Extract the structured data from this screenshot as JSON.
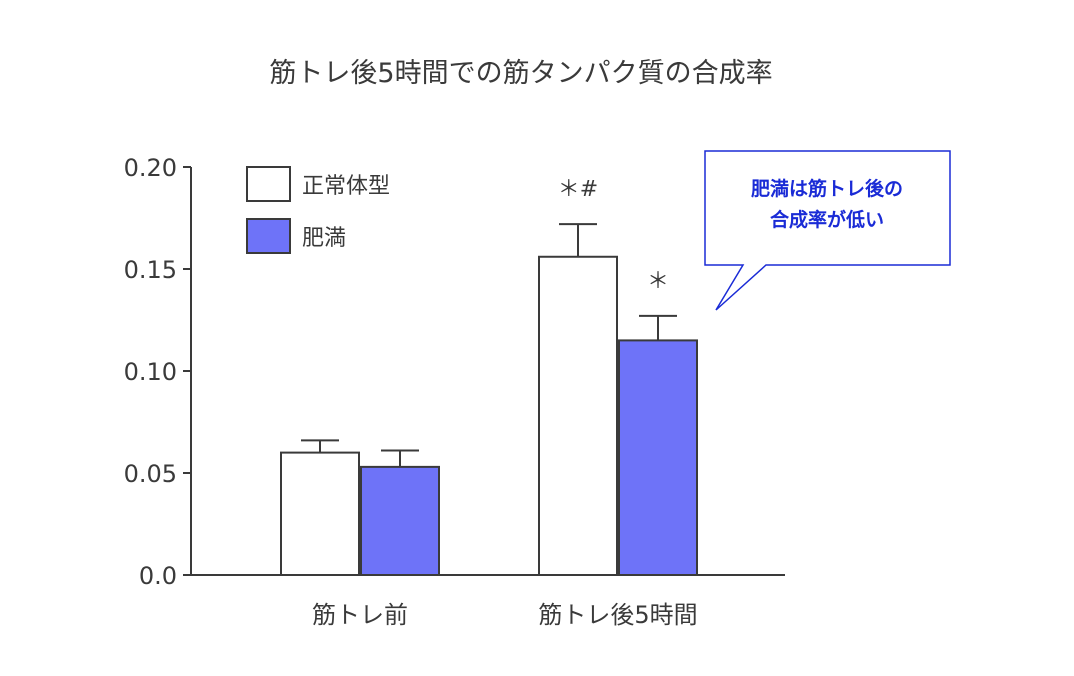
{
  "chart_data": {
    "type": "bar",
    "title": "筋トレ後5時間での筋タンパク質の合成率",
    "categories": [
      "筋トレ前",
      "筋トレ後5時間"
    ],
    "series": [
      {
        "name": "正常体型",
        "values": [
          0.06,
          0.156
        ],
        "errors": [
          0.006,
          0.016
        ],
        "color": "#ffffff"
      },
      {
        "name": "肥満",
        "values": [
          0.053,
          0.115
        ],
        "errors": [
          0.008,
          0.012
        ],
        "color": "#6e73f8"
      }
    ],
    "ylim": [
      0,
      0.2
    ],
    "yticks": [
      "0.0",
      "0.05",
      "0.10",
      "0.15",
      "0.20"
    ],
    "ytick_values": [
      0,
      0.05,
      0.1,
      0.15,
      0.2
    ],
    "significance": [
      {
        "category": 1,
        "series": 0,
        "label": "＊#"
      },
      {
        "category": 1,
        "series": 1,
        "label": "＊"
      }
    ],
    "legend_position": "top-left",
    "annotation": {
      "lines": [
        "肥満は筋トレ後の",
        "合成率が低い"
      ],
      "color": "#1a2bd6"
    }
  }
}
